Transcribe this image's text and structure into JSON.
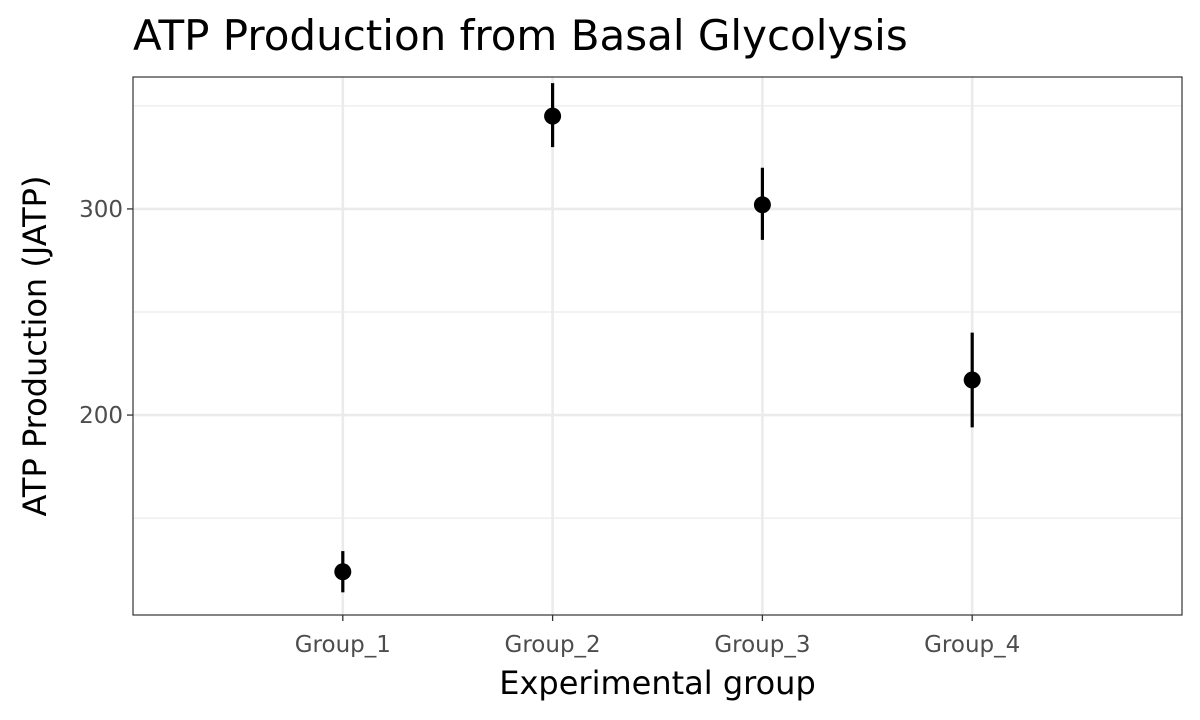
{
  "chart_data": {
    "type": "scatter",
    "title": "ATP Production from Basal Glycolysis",
    "xlabel": "Experimental group",
    "ylabel": "ATP Production (JATP)",
    "categories": [
      "Group_1",
      "Group_2",
      "Group_3",
      "Group_4"
    ],
    "values": [
      124,
      345,
      302,
      217
    ],
    "error_low": [
      114,
      330,
      285,
      194
    ],
    "error_high": [
      134,
      361,
      320,
      240
    ],
    "ylim": [
      103,
      364
    ],
    "yticks": [
      200,
      300
    ],
    "ytick_labels": [
      "200",
      "300"
    ],
    "grid": true,
    "point_color": "#000000",
    "grid_color": "#ebebeb",
    "panel_border_color": "#333333"
  }
}
